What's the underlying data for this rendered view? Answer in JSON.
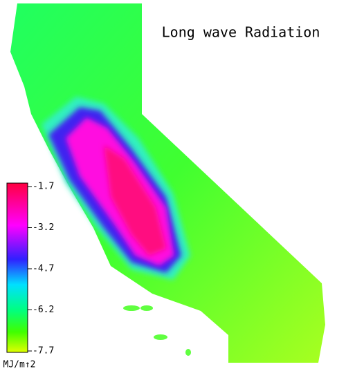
{
  "title": "Long wave Radiation",
  "colorbar": {
    "range": [
      -7.7,
      -1.7
    ],
    "ticks": [
      -1.7,
      -3.2,
      -4.7,
      -6.2,
      -7.7
    ],
    "unit": "MJ/m↑2"
  }
}
